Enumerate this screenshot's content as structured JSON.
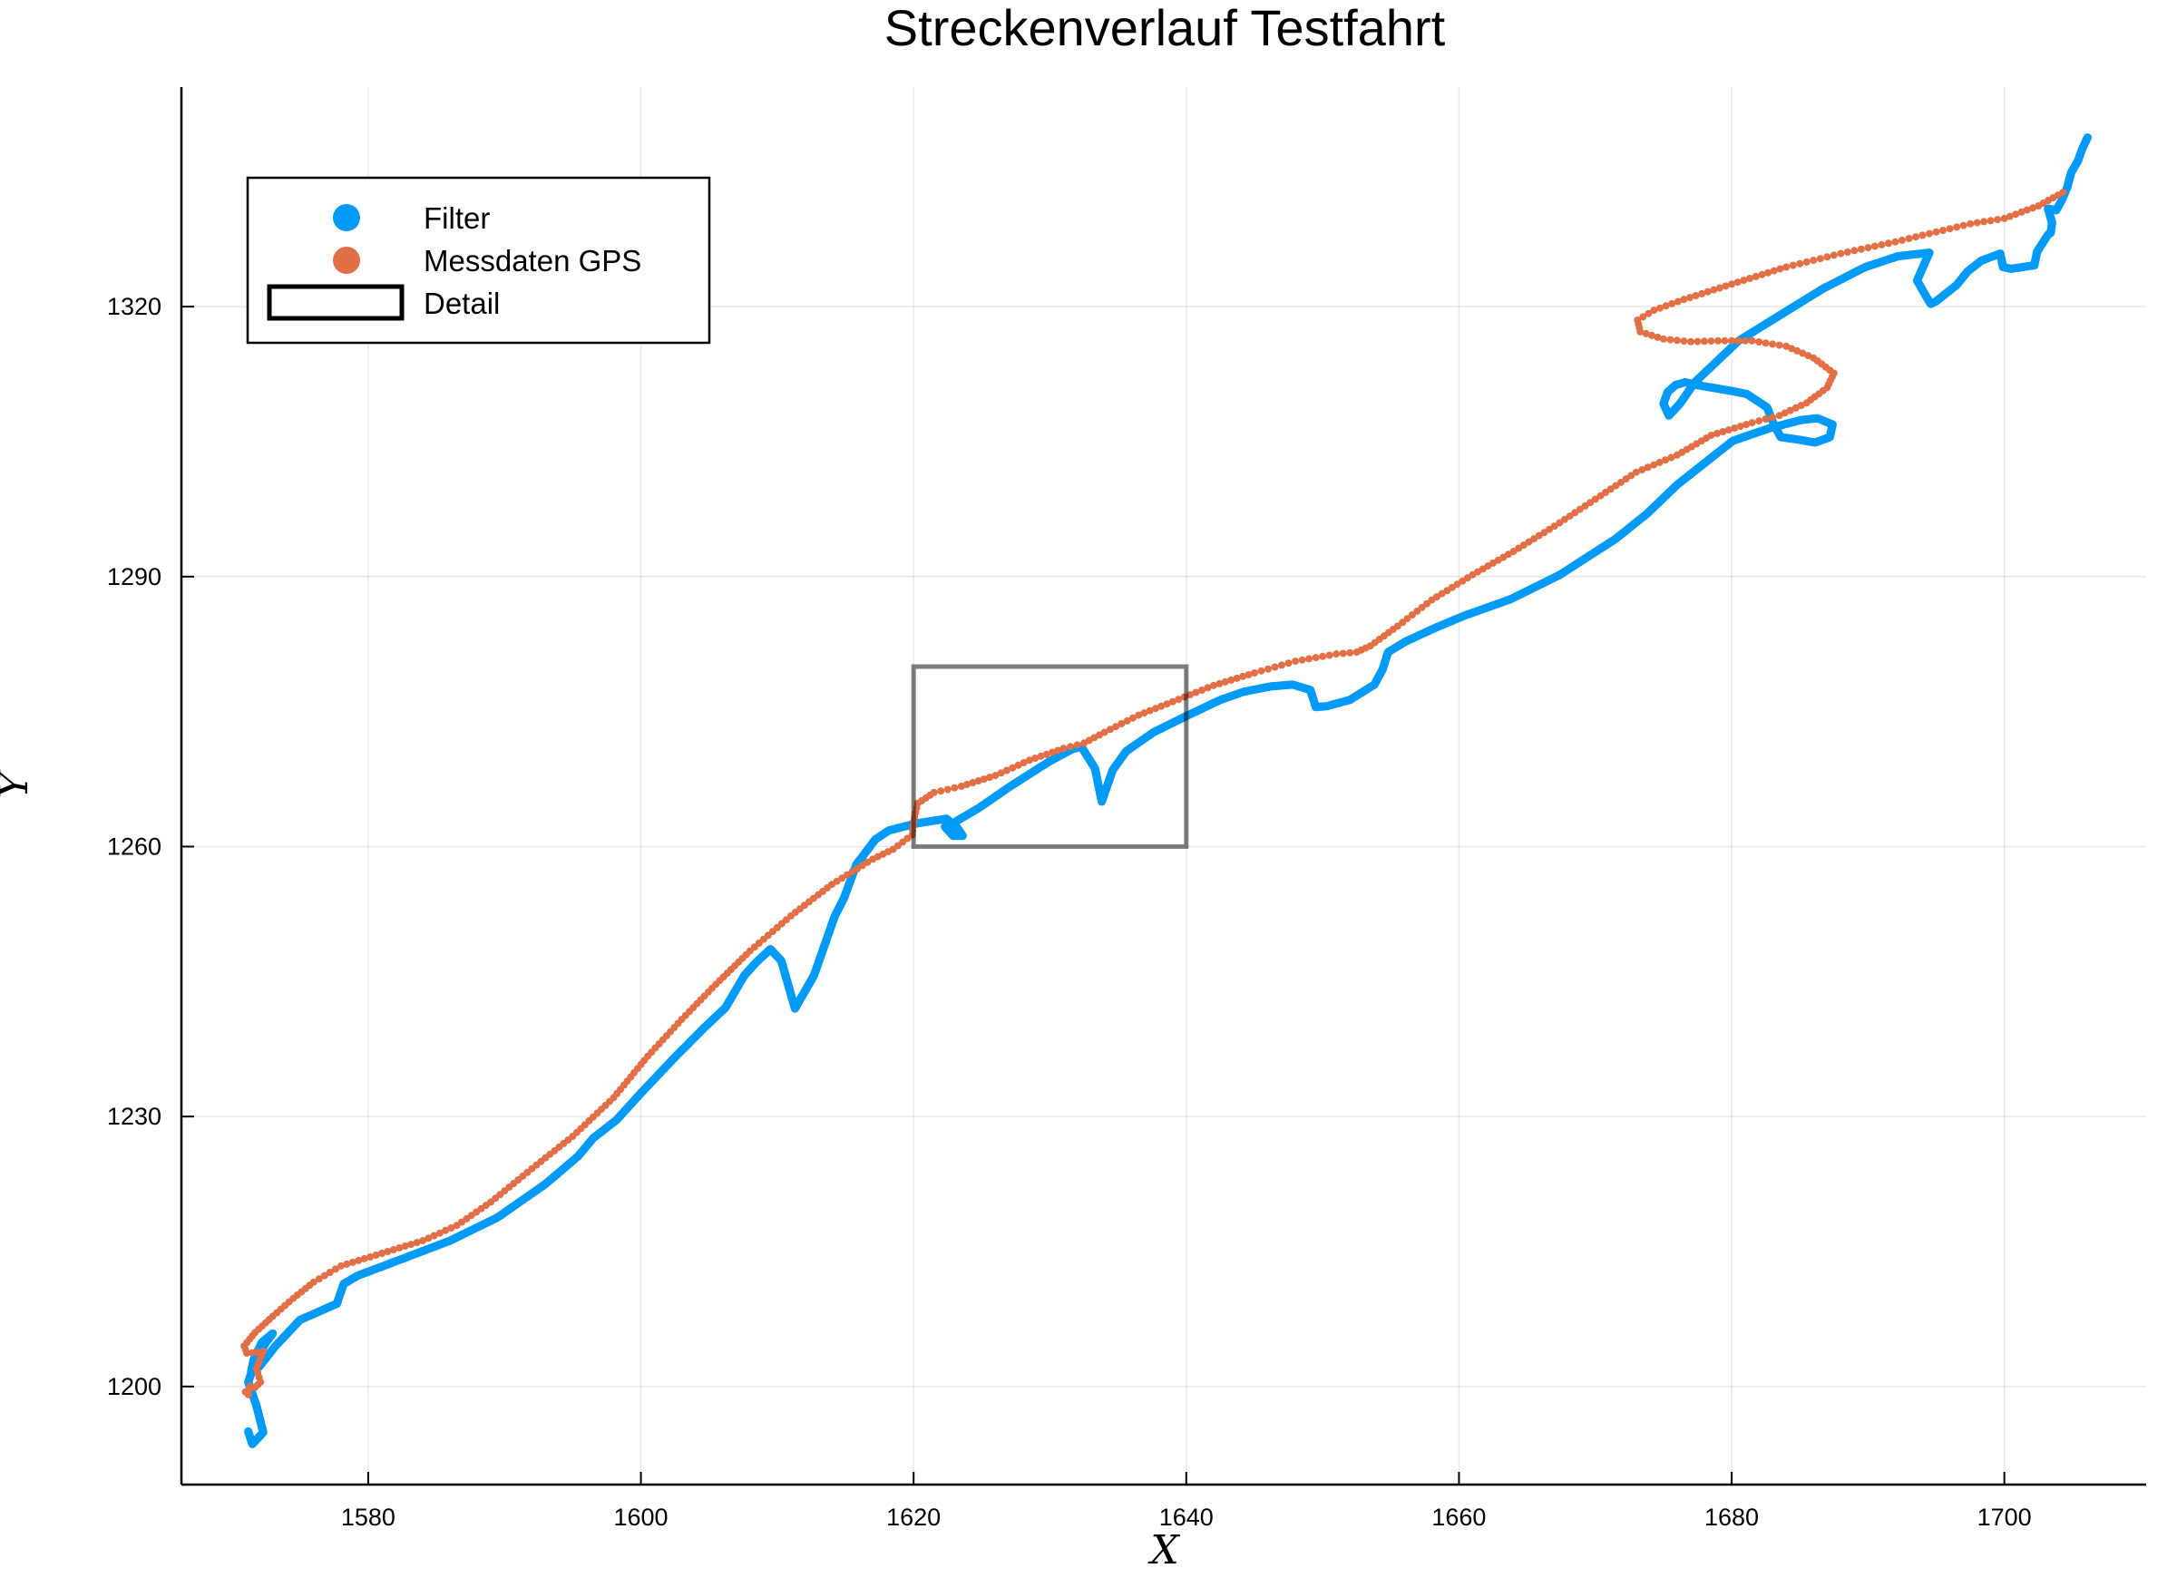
{
  "chart_data": {
    "type": "scatter",
    "title": "Streckenverlauf Testfahrt",
    "xlabel": "X",
    "ylabel": "Y",
    "xlim": [
      1566.3,
      1710.4
    ],
    "ylim": [
      1189.1,
      1344.4
    ],
    "x_ticks": [
      1580,
      1600,
      1620,
      1640,
      1660,
      1680,
      1700
    ],
    "y_ticks": [
      1200,
      1230,
      1260,
      1290,
      1320
    ],
    "grid": true,
    "legend_position": "top-left",
    "colors": {
      "filter": "#009af9",
      "gps": "#e26f46",
      "detail": "#000000"
    },
    "series": [
      {
        "name": "Filter",
        "marker": "dot",
        "x": [
          1571.2,
          1571.5,
          1572.3,
          1571.8,
          1571.2,
          1571.8,
          1572.5,
          1573,
          1572.2,
          1571.6,
          1571.4,
          1572,
          1573.2,
          1575,
          1577.7,
          1578.2,
          1579.2,
          1582,
          1586,
          1589.5,
          1593,
          1595.4,
          1596.5,
          1598.2,
          1600,
          1602.5,
          1604.6,
          1606.2,
          1607.6,
          1608.5,
          1609.5,
          1610.3,
          1611.3,
          1612.7,
          1613.3,
          1614.2,
          1614.9,
          1615.8,
          1617.2,
          1618.2,
          1619.5,
          1620.3,
          1621.6,
          1622.4,
          1623.2,
          1623.6,
          1622.9,
          1622.3,
          1623,
          1624.8,
          1627,
          1630,
          1631.6,
          1632.3,
          1633.3,
          1633.8,
          1634.6,
          1635.6,
          1637.6,
          1640,
          1642.5,
          1644.2,
          1646.2,
          1647.8,
          1649.1,
          1649.5,
          1650.3,
          1652,
          1653.8,
          1654.4,
          1654.8,
          1656.1,
          1658.4,
          1660.3,
          1663.8,
          1667.4,
          1671.5,
          1673.8,
          1676,
          1678.5,
          1680.1,
          1682.8,
          1685.1,
          1686.3,
          1687.4,
          1687.2,
          1686.1,
          1685,
          1683.6,
          1683.1,
          1682.6,
          1681.1,
          1680.1,
          1677.4,
          1676.6,
          1675.9,
          1675.3,
          1675,
          1675.4,
          1676.2,
          1677.3,
          1680.5,
          1683.6,
          1686.7,
          1689.8,
          1692.2,
          1694.5,
          1693.6,
          1694.2,
          1694.6,
          1695,
          1696.5,
          1697.3,
          1698.3,
          1699.7,
          1699.9,
          1700.5,
          1702.2,
          1702.4,
          1703.2,
          1703.4,
          1703.5,
          1703.2,
          1703.8,
          1704.2,
          1704.6,
          1704.9,
          1705.4,
          1705.7,
          1706.1
        ],
        "y": [
          1195,
          1193.6,
          1194.9,
          1197.9,
          1200.5,
          1203.1,
          1204.9,
          1205.9,
          1204.9,
          1203,
          1201.5,
          1202.2,
          1204.5,
          1207.4,
          1209.2,
          1211.4,
          1212.3,
          1213.9,
          1216.2,
          1218.8,
          1222.5,
          1225.6,
          1227.6,
          1229.6,
          1232.6,
          1236.6,
          1239.8,
          1242.1,
          1245.7,
          1247.2,
          1248.6,
          1247.3,
          1242,
          1245.7,
          1248.3,
          1252.2,
          1254.3,
          1258,
          1260.8,
          1261.8,
          1262.3,
          1262.6,
          1262.9,
          1263.1,
          1262.1,
          1261.2,
          1261.2,
          1262.2,
          1262.7,
          1264.3,
          1266.6,
          1269.5,
          1270.8,
          1271.1,
          1268.7,
          1265,
          1268.5,
          1270.6,
          1272.7,
          1274.5,
          1276.3,
          1277.2,
          1277.8,
          1278,
          1277.4,
          1275.5,
          1275.6,
          1276.3,
          1278,
          1279.7,
          1281.6,
          1282.8,
          1284.4,
          1285.6,
          1287.5,
          1290.2,
          1294.2,
          1297,
          1300.2,
          1303.2,
          1305.1,
          1306.5,
          1307.4,
          1307.6,
          1306.9,
          1305.5,
          1304.9,
          1305.2,
          1305.5,
          1306.9,
          1308.8,
          1310.3,
          1310.6,
          1311.3,
          1311.6,
          1311.3,
          1310.5,
          1309.2,
          1307.9,
          1309.2,
          1311.6,
          1316.2,
          1319.1,
          1322,
          1324.4,
          1325.6,
          1326,
          1322.9,
          1321.3,
          1320.3,
          1320.6,
          1322.4,
          1323.9,
          1325.1,
          1325.9,
          1324.4,
          1324.2,
          1324.6,
          1326.1,
          1328,
          1328.2,
          1329.3,
          1330.9,
          1330.7,
          1331.8,
          1333.2,
          1334.9,
          1336.2,
          1337.5,
          1338.8
        ]
      },
      {
        "name": "Messdaten GPS",
        "marker": "dot",
        "x": [
          1571,
          1571.2,
          1571.3,
          1571.7,
          1572.1,
          1571.8,
          1572.3,
          1571.9,
          1571.1,
          1570.9,
          1571.7,
          1573,
          1574.5,
          1576,
          1578,
          1581,
          1584,
          1586.5,
          1589,
          1592,
          1595,
          1598,
          1600.5,
          1603,
          1605.5,
          1608,
          1611,
          1614,
          1617,
          1618.5,
          1619.9,
          1620,
          1620.3,
          1621.5,
          1623.5,
          1626,
          1628.5,
          1631,
          1632.5,
          1634,
          1636.5,
          1639,
          1642,
          1645,
          1648,
          1651,
          1652.5,
          1653.5,
          1655.5,
          1658,
          1661,
          1664,
          1667,
          1670,
          1673,
          1676,
          1678.5,
          1681.5,
          1683.5,
          1685.5,
          1687,
          1687.5,
          1686,
          1684,
          1681.5,
          1679,
          1677,
          1675,
          1673.3,
          1673.1,
          1674.3,
          1676.5,
          1680,
          1684,
          1688,
          1692,
          1695,
          1697.5,
          1700,
          1702.5,
          1704.3
        ],
        "y": [
          1199.4,
          1199.1,
          1200,
          1199.9,
          1200.5,
          1202,
          1203.9,
          1203.8,
          1203.7,
          1204.5,
          1206,
          1207.8,
          1209.8,
          1211.6,
          1213.4,
          1214.8,
          1216.2,
          1217.9,
          1220.5,
          1224.2,
          1227.8,
          1232.1,
          1236.7,
          1240.8,
          1244.7,
          1248.4,
          1252.3,
          1255.8,
          1258.6,
          1259.7,
          1261.3,
          1262.8,
          1264.8,
          1266,
          1266.7,
          1267.9,
          1269.6,
          1270.9,
          1271.5,
          1272.7,
          1274.6,
          1276.1,
          1277.9,
          1279.3,
          1280.6,
          1281.4,
          1281.6,
          1282.3,
          1284.5,
          1287.4,
          1290.2,
          1292.8,
          1295.6,
          1298.6,
          1301.6,
          1303.5,
          1305.7,
          1307.1,
          1307.9,
          1309.3,
          1311,
          1312.6,
          1314.3,
          1315.6,
          1316.2,
          1316.2,
          1316.1,
          1316.4,
          1317.2,
          1318.5,
          1319.6,
          1320.8,
          1322.5,
          1324.4,
          1325.9,
          1327.2,
          1328.3,
          1329.2,
          1329.8,
          1331.2,
          1332.7
        ]
      }
    ],
    "annotations": [
      {
        "name": "Detail",
        "shape": "rectangle",
        "x": [
          1620,
          1640
        ],
        "y": [
          1260,
          1280
        ]
      }
    ]
  }
}
